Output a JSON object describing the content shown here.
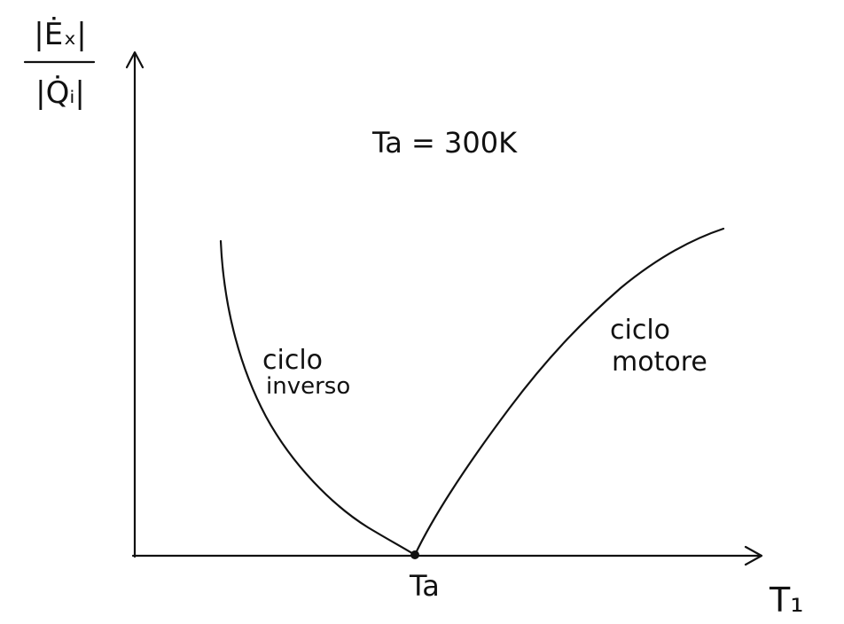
{
  "chart_data": {
    "type": "line",
    "title": "",
    "ylabel_numerator": "|Ėₓ|",
    "ylabel_denominator": "|Q̇ᵢ|",
    "xlabel": "T₁",
    "x_tick_label": "Ta",
    "annotation": "Ta = 300K",
    "series": [
      {
        "name": "ciclo inverso",
        "label_lines": [
          "ciclo",
          "inverso"
        ]
      },
      {
        "name": "ciclo motore",
        "label_lines": [
          "ciclo",
          "motore"
        ]
      }
    ],
    "grid": false,
    "legend": "none"
  },
  "colors": {
    "ink": "#111111",
    "background": "#ffffff"
  }
}
